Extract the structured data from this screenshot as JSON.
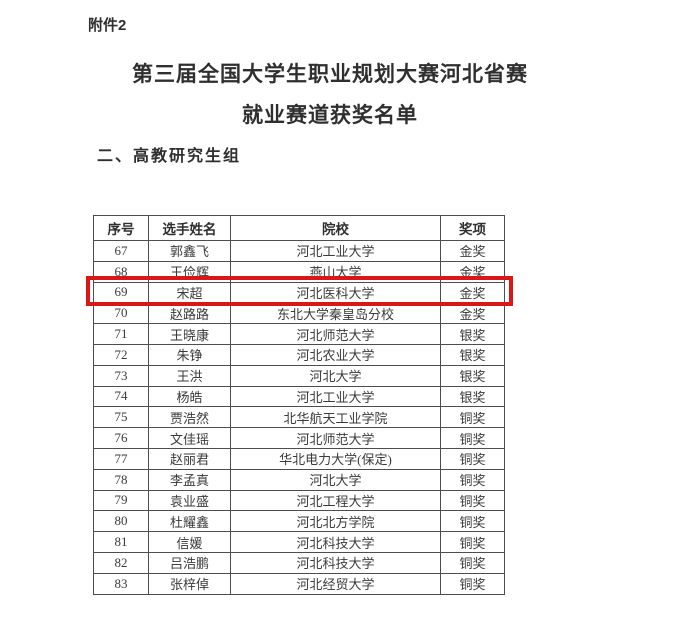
{
  "page": {
    "attachment_label": "附件2",
    "title_line1": "第三届全国大学生职业规划大赛河北省赛",
    "title_line2": "就业赛道获奖名单",
    "section_heading": "二、高教研究生组"
  },
  "table": {
    "columns": [
      "序号",
      "选手姓名",
      "院校",
      "奖项"
    ],
    "highlighted_no": "69",
    "highlight_color": "#dc1616",
    "rows": [
      {
        "no": "67",
        "name": "郭鑫飞",
        "school": "河北工业大学",
        "award": "金奖"
      },
      {
        "no": "68",
        "name": "王俭辉",
        "school": "燕山大学",
        "award": "金奖"
      },
      {
        "no": "69",
        "name": "宋超",
        "school": "河北医科大学",
        "award": "金奖"
      },
      {
        "no": "70",
        "name": "赵路路",
        "school": "东北大学秦皇岛分校",
        "award": "金奖"
      },
      {
        "no": "71",
        "name": "王晓康",
        "school": "河北师范大学",
        "award": "银奖"
      },
      {
        "no": "72",
        "name": "朱铮",
        "school": "河北农业大学",
        "award": "银奖"
      },
      {
        "no": "73",
        "name": "王洪",
        "school": "河北大学",
        "award": "银奖"
      },
      {
        "no": "74",
        "name": "杨皓",
        "school": "河北工业大学",
        "award": "银奖"
      },
      {
        "no": "75",
        "name": "贾浩然",
        "school": "北华航天工业学院",
        "award": "铜奖"
      },
      {
        "no": "76",
        "name": "文佳瑶",
        "school": "河北师范大学",
        "award": "铜奖"
      },
      {
        "no": "77",
        "name": "赵丽君",
        "school": "华北电力大学(保定)",
        "award": "铜奖"
      },
      {
        "no": "78",
        "name": "李孟真",
        "school": "河北大学",
        "award": "铜奖"
      },
      {
        "no": "79",
        "name": "袁业盛",
        "school": "河北工程大学",
        "award": "铜奖"
      },
      {
        "no": "80",
        "name": "杜耀鑫",
        "school": "河北北方学院",
        "award": "铜奖"
      },
      {
        "no": "81",
        "name": "信媛",
        "school": "河北科技大学",
        "award": "铜奖"
      },
      {
        "no": "82",
        "name": "吕浩鹏",
        "school": "河北科技大学",
        "award": "铜奖"
      },
      {
        "no": "83",
        "name": "张梓倬",
        "school": "河北经贸大学",
        "award": "铜奖"
      }
    ]
  }
}
